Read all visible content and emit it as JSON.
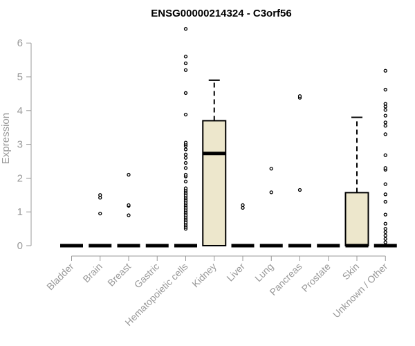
{
  "chart_data": {
    "type": "boxplot",
    "title": "ENSG00000214324 - C3orf56",
    "xlabel": "",
    "ylabel": "Expression",
    "ylim": [
      0,
      6.5
    ],
    "yticks": [
      0,
      1,
      2,
      3,
      4,
      5,
      6
    ],
    "box_fill": "#ede7cc",
    "categories": [
      "Bladder",
      "Brain",
      "Breast",
      "Gastric",
      "Hematopoietic cells",
      "Kidney",
      "Liver",
      "Lung",
      "Pancreas",
      "Prostate",
      "Skin",
      "Unknown / Other"
    ],
    "boxes": [
      {
        "q1": 0,
        "median": 0,
        "q3": 0,
        "whisker_low": 0,
        "whisker_high": 0,
        "outliers": []
      },
      {
        "q1": 0,
        "median": 0,
        "q3": 0,
        "whisker_low": 0,
        "whisker_high": 0,
        "outliers": [
          0.95,
          1.42,
          1.5
        ]
      },
      {
        "q1": 0,
        "median": 0,
        "q3": 0,
        "whisker_low": 0,
        "whisker_high": 0,
        "outliers": [
          0.9,
          1.18,
          1.2,
          2.1
        ]
      },
      {
        "q1": 0,
        "median": 0,
        "q3": 0,
        "whisker_low": 0,
        "whisker_high": 0,
        "outliers": []
      },
      {
        "q1": 0,
        "median": 0,
        "q3": 0,
        "whisker_low": 0,
        "whisker_high": 0,
        "outliers": [
          0.5,
          0.55,
          0.6,
          0.65,
          0.7,
          0.75,
          0.8,
          0.85,
          0.9,
          0.95,
          1.0,
          1.05,
          1.1,
          1.15,
          1.2,
          1.25,
          1.3,
          1.35,
          1.4,
          1.45,
          1.5,
          1.55,
          1.6,
          1.65,
          1.7,
          1.9,
          2.05,
          2.1,
          2.3,
          2.45,
          2.6,
          2.7,
          2.85,
          2.95,
          3.0,
          3.05,
          3.88,
          4.52,
          5.2,
          5.4,
          5.6,
          6.42
        ]
      },
      {
        "q1": 0,
        "median": 2.73,
        "q3": 3.7,
        "whisker_low": 0,
        "whisker_high": 4.9,
        "outliers": []
      },
      {
        "q1": 0,
        "median": 0,
        "q3": 0,
        "whisker_low": 0,
        "whisker_high": 0,
        "outliers": [
          1.12,
          1.2
        ]
      },
      {
        "q1": 0,
        "median": 0,
        "q3": 0,
        "whisker_low": 0,
        "whisker_high": 0,
        "outliers": [
          1.58,
          2.28
        ]
      },
      {
        "q1": 0,
        "median": 0,
        "q3": 0,
        "whisker_low": 0,
        "whisker_high": 0,
        "outliers": [
          1.65,
          4.38,
          4.43
        ]
      },
      {
        "q1": 0,
        "median": 0,
        "q3": 0,
        "whisker_low": 0,
        "whisker_high": 0,
        "outliers": []
      },
      {
        "q1": 0,
        "median": 0,
        "q3": 1.57,
        "whisker_low": 0,
        "whisker_high": 3.8,
        "outliers": []
      },
      {
        "q1": 0,
        "median": 0,
        "q3": 0,
        "whisker_low": 0,
        "whisker_high": 0,
        "outliers": [
          0.1,
          0.2,
          0.3,
          0.4,
          0.5,
          0.65,
          0.92,
          1.3,
          1.52,
          1.82,
          2.25,
          2.3,
          2.68,
          3.3,
          3.55,
          3.65,
          3.85,
          4.02,
          4.12,
          4.2,
          4.62,
          5.18
        ]
      }
    ]
  }
}
